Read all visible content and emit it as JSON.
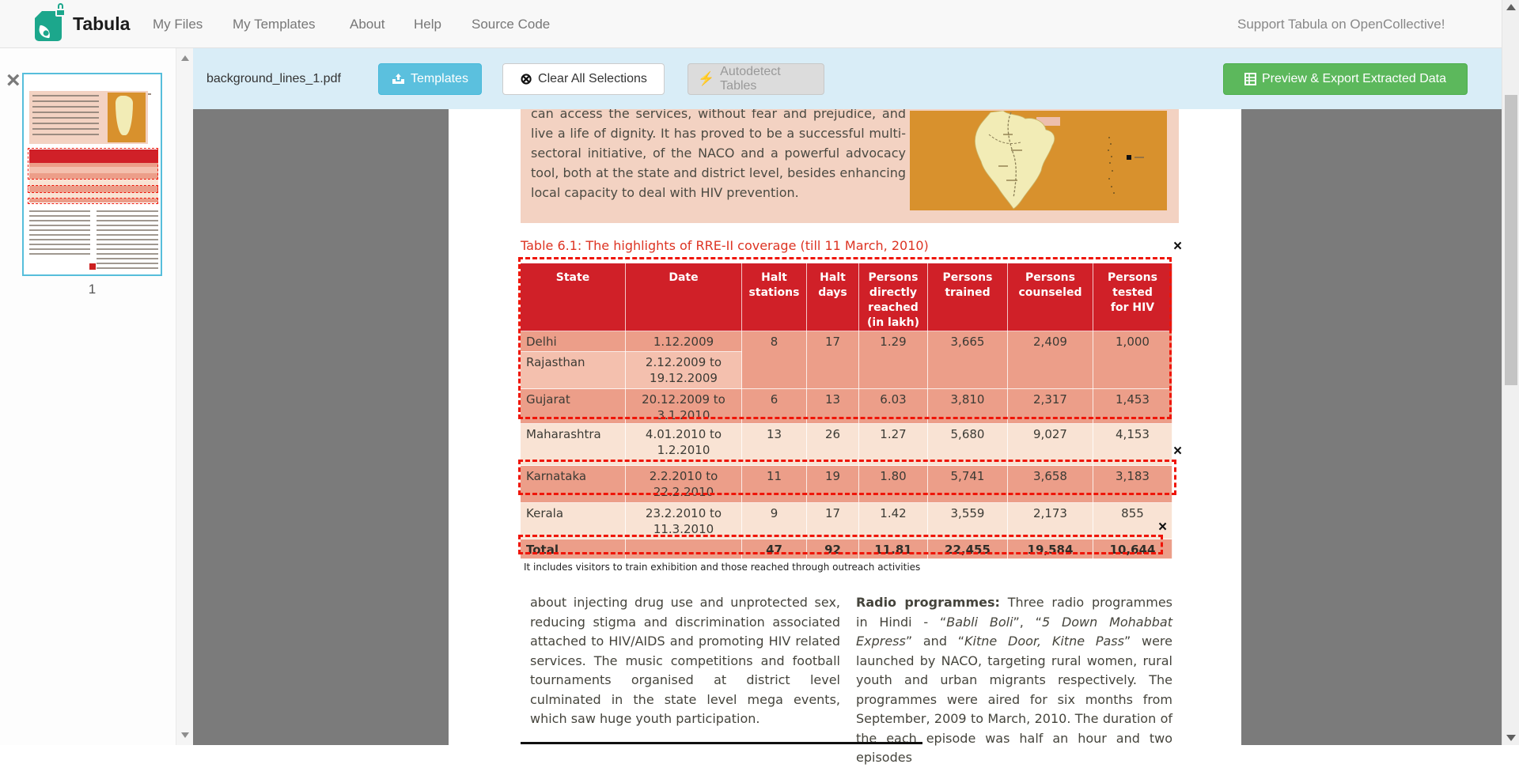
{
  "navbar": {
    "brand": "Tabula",
    "items": [
      "My Files",
      "My Templates",
      "About",
      "Help",
      "Source Code"
    ],
    "support": "Support Tabula on OpenCollective!"
  },
  "toolbar": {
    "filename": "background_lines_1.pdf",
    "templates_label": "Templates",
    "clear_label": "Clear All Selections",
    "autodetect_label": "Autodetect Tables",
    "export_label": "Preview & Export Extracted Data"
  },
  "sidebar": {
    "page_number": "1",
    "close_glyph": "×"
  },
  "ui": {
    "close_glyph": "×",
    "clear_icon_glyph": "⊗",
    "autodetect_icon_glyph": "⚡"
  },
  "doc": {
    "intro": "can access the services, without fear and prejudice, and live a life of dignity. It has proved to be a successful multi-sectoral initiative, of the NACO and a powerful advocacy tool, both at the state and district level, besides enhancing local capacity to deal with HIV prevention.",
    "table_title": "Table 6.1: The highlights of RRE-II coverage (till 11 March, 2010)",
    "footnote": "It includes visitors to train exhibition and those reached through outreach activities",
    "left_col": "about injecting drug use and unprotected sex, reducing stigma and discrimination associated attached to HIV/AIDS and promoting HIV related services. The music competitions and football tournaments organised at district level culminated in the state level mega events, which saw huge youth participation.",
    "radio": {
      "lead": "Radio programmes:",
      "s1": " Three radio programmes in Hindi - “",
      "i1": "Babli Boli",
      "s2": "”, “",
      "i2": "5 Down Mohabbat Express",
      "s3": "” and “",
      "i3": "Kitne Door, Kitne Pass",
      "s4": "” were launched by NACO, targeting rural women, rural youth and urban migrants respectively. The programmes were aired for six months from September, 2009 to March, 2010. The duration of the each episode was half an hour and two episodes"
    }
  },
  "table": {
    "headers": [
      [
        "State"
      ],
      [
        "Date"
      ],
      [
        "Halt",
        "stations"
      ],
      [
        "Halt",
        "days"
      ],
      [
        "Persons",
        "directly",
        "reached",
        "(in lakh)"
      ],
      [
        "Persons",
        "trained"
      ],
      [
        "Persons",
        "counseled"
      ],
      [
        "Persons",
        "tested",
        "for HIV"
      ]
    ],
    "rows": [
      {
        "state": "Delhi",
        "date": [
          "1.12.2009"
        ],
        "values": [
          "8",
          "17",
          "1.29",
          "3,665",
          "2,409",
          "1,000"
        ],
        "rowspan": 2,
        "selected": true
      },
      {
        "state": "Rajasthan",
        "date": [
          "2.12.2009 to",
          "19.12.2009"
        ],
        "values": null,
        "selected": true
      },
      {
        "state": "Gujarat",
        "date": [
          "20.12.2009 to",
          "3.1.2010"
        ],
        "values": [
          "6",
          "13",
          "6.03",
          "3,810",
          "2,317",
          "1,453"
        ],
        "selected": true
      },
      {
        "state": "Maharashtra",
        "date": [
          "4.01.2010 to",
          "1.2.2010"
        ],
        "values": [
          "13",
          "26",
          "1.27",
          "5,680",
          "9,027",
          "4,153"
        ],
        "selected": false
      },
      {
        "state": "Karnataka",
        "date": [
          "2.2.2010 to",
          "22.2.2010"
        ],
        "values": [
          "11",
          "19",
          "1.80",
          "5,741",
          "3,658",
          "3,183"
        ],
        "selected": true
      },
      {
        "state": "Kerala",
        "date": [
          "23.2.2010 to",
          "11.3.2010"
        ],
        "values": [
          "9",
          "17",
          "1.42",
          "3,559",
          "2,173",
          "855"
        ],
        "selected": false
      },
      {
        "state": "Total",
        "date": [],
        "values": [
          "47",
          "92",
          "11.81",
          "22,455",
          "19,584",
          "10,644"
        ],
        "selected": true,
        "bold": true
      }
    ]
  },
  "colors": {
    "toolbar_bg": "#d9edf7",
    "templates_btn": "#5bc0de",
    "export_btn": "#5cb85c",
    "header_red": "#d02028",
    "selection_red": "#ef1508",
    "row_selected_pink": "#ec9e89",
    "row_selected_light": "#f4c0ae",
    "row_plain": "#f9e3d4"
  }
}
